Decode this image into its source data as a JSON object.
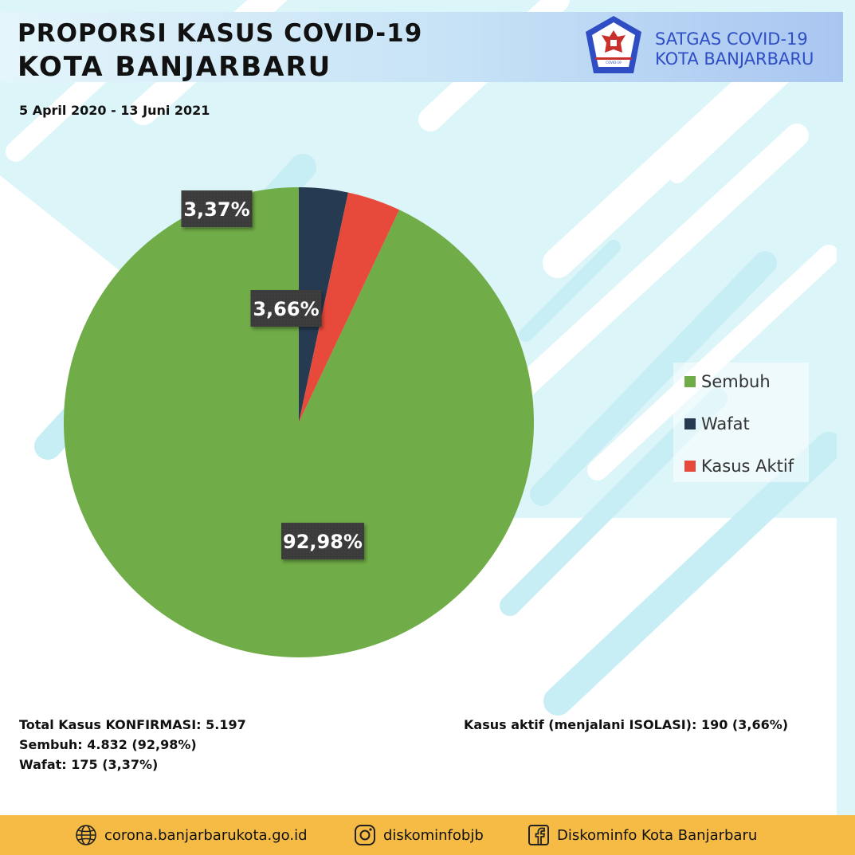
{
  "header": {
    "title_line1": "PROPORSI KASUS COVID-19",
    "title_line2": "KOTA BANJARBARU",
    "org_line1": "SATGAS COVID-19",
    "org_line2": "KOTA BANJARBARU",
    "emblem_caption": "SATUAN TUGAS PENANGANAN COVID-19"
  },
  "date_range": "5 April 2020 - 13 Juni 2021",
  "chart_data": {
    "type": "pie",
    "categories": [
      "Sembuh",
      "Wafat",
      "Kasus Aktif"
    ],
    "values": [
      92.98,
      3.37,
      3.66
    ],
    "data_labels": [
      "92,98%",
      "3,37%",
      "3,66%"
    ],
    "colors": [
      "#70ac47",
      "#263a51",
      "#e7493b"
    ],
    "legend_position": "right"
  },
  "stats": {
    "total": "Total Kasus KONFIRMASI: 5.197",
    "recovered": "Sembuh: 4.832 (92,98%)",
    "deaths": "Wafat: 175 (3,37%)",
    "active": "Kasus aktif (menjalani ISOLASI): 190 (3,66%)"
  },
  "footer": {
    "website": "corona.banjarbarukota.go.id",
    "instagram": "diskominfobjb",
    "facebook": "Diskominfo Kota Banjarbaru"
  },
  "icons": {
    "website": "globe-icon",
    "instagram": "instagram-icon",
    "facebook": "facebook-icon"
  }
}
